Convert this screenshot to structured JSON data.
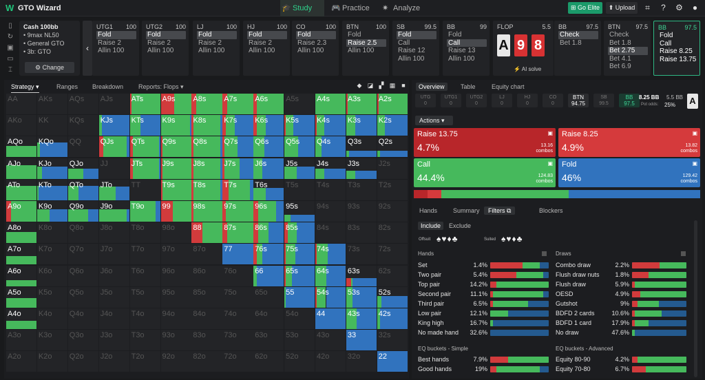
{
  "app": {
    "title": "GTO Wizard",
    "nav": [
      "Study",
      "Practice",
      "Analyze"
    ],
    "elite": "Go Elite",
    "upload": "Upload"
  },
  "cash": {
    "title": "Cash 100bb",
    "lines": [
      "9max NL50",
      "General GTO",
      "3b: GTO"
    ],
    "change": "Change"
  },
  "seats": [
    {
      "pos": "UTG1",
      "stack": "100",
      "actions": [
        "Fold",
        "Raise 2",
        "Allin 100"
      ],
      "sel": 0
    },
    {
      "pos": "UTG2",
      "stack": "100",
      "actions": [
        "Fold",
        "Raise 2",
        "Allin 100"
      ],
      "sel": 0
    },
    {
      "pos": "LJ",
      "stack": "100",
      "actions": [
        "Fold",
        "Raise 2",
        "Allin 100"
      ],
      "sel": 0
    },
    {
      "pos": "HJ",
      "stack": "100",
      "actions": [
        "Fold",
        "Raise 2",
        "Allin 100"
      ],
      "sel": 0
    },
    {
      "pos": "CO",
      "stack": "100",
      "actions": [
        "Fold",
        "Raise 2.3",
        "Allin 100"
      ],
      "sel": 0
    },
    {
      "pos": "BTN",
      "stack": "100",
      "actions": [
        "Fold",
        "Raise 2.5",
        "Allin 100"
      ],
      "sel": 1
    },
    {
      "pos": "SB",
      "stack": "99.5",
      "actions": [
        "Fold",
        "Call",
        "Raise 12",
        "Allin 100"
      ],
      "sel": 0
    },
    {
      "pos": "BB",
      "stack": "99",
      "actions": [
        "Fold",
        "Call",
        "Raise 13",
        "Allin 100"
      ],
      "sel": 1
    }
  ],
  "flop": {
    "label": "FLOP",
    "pot": "5.5",
    "cards": [
      "A",
      "9",
      "8"
    ],
    "ai": "AI solve"
  },
  "street_seats": [
    {
      "pos": "BB",
      "stack": "97.5",
      "actions": [
        "Check",
        "Bet 1.8"
      ],
      "sel": 0
    },
    {
      "pos": "BTN",
      "stack": "97.5",
      "actions": [
        "Check",
        "Bet 1.8",
        "Bet 2.75",
        "Bet 4.1",
        "Bet 6.9"
      ],
      "sel": 2
    },
    {
      "pos": "BB",
      "stack": "97.5",
      "actions": [
        "Fold",
        "Call",
        "Raise 8.25",
        "Raise 13.75"
      ],
      "sel": -1
    }
  ],
  "grid_tabs": [
    "Strategy",
    "Ranges",
    "Breakdown",
    "Reports: Flops"
  ],
  "hands": [
    [
      "AA",
      "AKs",
      "AQs",
      "AJs",
      "ATs",
      "A9s",
      "A8s",
      "A7s",
      "A6s",
      "A5s",
      "A4s",
      "A3s",
      "A2s"
    ],
    [
      "AKo",
      "KK",
      "KQs",
      "KJs",
      "KTs",
      "K9s",
      "K8s",
      "K7s",
      "K6s",
      "K5s",
      "K4s",
      "K3s",
      "K2s"
    ],
    [
      "AQo",
      "KQo",
      "QQ",
      "QJs",
      "QTs",
      "Q9s",
      "Q8s",
      "Q7s",
      "Q6s",
      "Q5s",
      "Q4s",
      "Q3s",
      "Q2s"
    ],
    [
      "AJo",
      "KJo",
      "QJo",
      "JJ",
      "JTs",
      "J9s",
      "J8s",
      "J7s",
      "J6s",
      "J5s",
      "J4s",
      "J3s",
      "J2s"
    ],
    [
      "ATo",
      "KTo",
      "QTo",
      "JTo",
      "TT",
      "T9s",
      "T8s",
      "T7s",
      "T6s",
      "T5s",
      "T4s",
      "T3s",
      "T2s"
    ],
    [
      "A9o",
      "K9o",
      "Q9o",
      "J9o",
      "T9o",
      "99",
      "98s",
      "97s",
      "96s",
      "95s",
      "94s",
      "93s",
      "92s"
    ],
    [
      "A8o",
      "K8o",
      "Q8o",
      "J8o",
      "T8o",
      "98o",
      "88",
      "87s",
      "86s",
      "85s",
      "84s",
      "83s",
      "82s"
    ],
    [
      "A7o",
      "K7o",
      "Q7o",
      "J7o",
      "T7o",
      "97o",
      "87o",
      "77",
      "76s",
      "75s",
      "74s",
      "73s",
      "72s"
    ],
    [
      "A6o",
      "K6o",
      "Q6o",
      "J6o",
      "T6o",
      "96o",
      "86o",
      "76o",
      "66",
      "65s",
      "64s",
      "63s",
      "62s"
    ],
    [
      "A5o",
      "K5o",
      "Q5o",
      "J5o",
      "T5o",
      "95o",
      "85o",
      "75o",
      "65o",
      "55",
      "54s",
      "53s",
      "52s"
    ],
    [
      "A4o",
      "K4o",
      "Q4o",
      "J4o",
      "T4o",
      "94o",
      "84o",
      "74o",
      "64o",
      "54o",
      "44",
      "43s",
      "42s"
    ],
    [
      "A3o",
      "K3o",
      "Q3o",
      "J3o",
      "T3o",
      "93o",
      "83o",
      "73o",
      "63o",
      "53o",
      "43o",
      "33",
      "32s"
    ],
    [
      "A2o",
      "K2o",
      "Q2o",
      "J2o",
      "T2o",
      "92o",
      "82o",
      "72o",
      "62o",
      "52o",
      "42o",
      "32o",
      "22"
    ]
  ],
  "right_tabs": [
    "Overview",
    "Table",
    "Equity chart"
  ],
  "positions": [
    {
      "name": "UTG",
      "val": "0"
    },
    {
      "name": "UTG1",
      "val": "0"
    },
    {
      "name": "UTG2",
      "val": "0"
    },
    {
      "name": "LJ",
      "val": "0"
    },
    {
      "name": "HJ",
      "val": "0"
    },
    {
      "name": "CO",
      "val": "0"
    },
    {
      "name": "BTN",
      "val": "94.75"
    },
    {
      "name": "SB",
      "val": "99.5"
    },
    {
      "name": "BB",
      "val": "97.5"
    }
  ],
  "pot": {
    "a": "8.25 BB",
    "b": "5.5 BB",
    "odds_label": "Pot odds:",
    "odds": "25%"
  },
  "actions_label": "Actions",
  "actions": [
    {
      "name": "Raise 13.75",
      "pct": "4.7%",
      "combos": "13.16",
      "color": "#b8262a"
    },
    {
      "name": "Raise 8.25",
      "pct": "4.9%",
      "combos": "13.82",
      "color": "#d53a3c"
    },
    {
      "name": "Call",
      "pct": "44.4%",
      "combos": "124.83",
      "color": "#46b95c"
    },
    {
      "name": "Fold",
      "pct": "46%",
      "combos": "129.42",
      "color": "#3173be"
    }
  ],
  "combos_label": "combos",
  "subtabs": [
    "Hands",
    "Summary",
    "Filters",
    "Blockers"
  ],
  "filters": {
    "include": "Include",
    "exclude": "Exclude",
    "offsuit": "Offsuit",
    "suited": "Suited"
  },
  "hands_section": {
    "title": "Hands",
    "rows": [
      {
        "name": "Set",
        "pct": "1.4%"
      },
      {
        "name": "Two pair",
        "pct": "5.4%"
      },
      {
        "name": "Top pair",
        "pct": "14.2%"
      },
      {
        "name": "Second pair",
        "pct": "11.1%"
      },
      {
        "name": "Third pair",
        "pct": "6.5%"
      },
      {
        "name": "Low pair",
        "pct": "12.1%"
      },
      {
        "name": "King high",
        "pct": "16.7%"
      },
      {
        "name": "No made hand",
        "pct": "32.6%"
      }
    ]
  },
  "draws_section": {
    "title": "Draws",
    "rows": [
      {
        "name": "Combo draw",
        "pct": "2.2%"
      },
      {
        "name": "Flush draw nuts",
        "pct": "1.8%"
      },
      {
        "name": "Flush draw",
        "pct": "5.9%"
      },
      {
        "name": "OESD",
        "pct": "4.9%"
      },
      {
        "name": "Gutshot",
        "pct": "9%"
      },
      {
        "name": "BDFD 2 cards",
        "pct": "10.6%"
      },
      {
        "name": "BDFD 1 card",
        "pct": "17.9%"
      },
      {
        "name": "No draw",
        "pct": "47.6%"
      }
    ]
  },
  "eq_simple": {
    "title": "EQ buckets - Simple",
    "rows": [
      {
        "name": "Best hands",
        "pct": "7.9%"
      },
      {
        "name": "Good hands",
        "pct": "19%"
      }
    ]
  },
  "eq_adv": {
    "title": "EQ buckets - Advanced",
    "rows": [
      {
        "name": "Equity 80-90",
        "pct": "4.2%"
      },
      {
        "name": "Equity 70-80",
        "pct": "6.7%"
      }
    ]
  }
}
